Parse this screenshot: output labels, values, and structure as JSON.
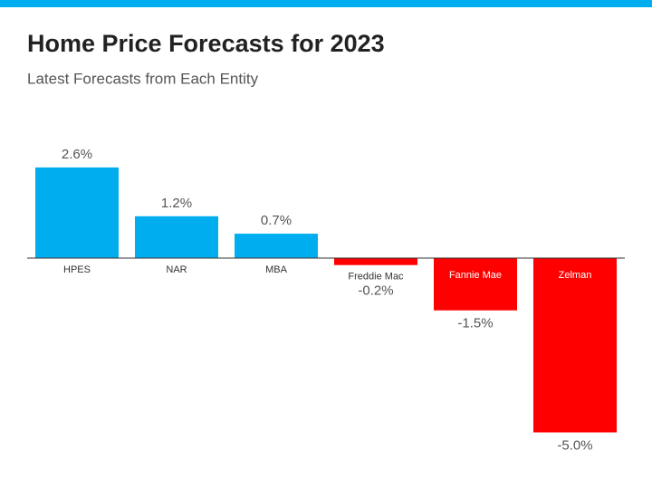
{
  "chart_data": {
    "type": "bar",
    "title": "Home Price Forecasts for 2023",
    "subtitle": "Latest Forecasts from Each Entity",
    "categories": [
      "HPES",
      "NAR",
      "MBA",
      "Freddie Mac",
      "Fannie Mae",
      "Zelman"
    ],
    "values": [
      2.6,
      1.2,
      0.7,
      -0.2,
      -1.5,
      -5.0
    ],
    "value_labels": [
      "2.6%",
      "1.2%",
      "0.7%",
      "-0.2%",
      "-1.5%",
      "-5.0%"
    ],
    "color": "#00aeef",
    "negative_color": "#ff0000"
  }
}
